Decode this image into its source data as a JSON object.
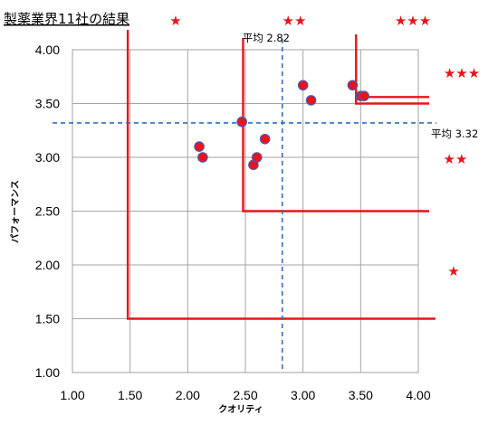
{
  "chart_data": {
    "type": "scatter",
    "title": "製薬業界11社の結果",
    "xlabel": "クオリティ",
    "ylabel": "パフォーマンス",
    "xlim": [
      1.0,
      4.0
    ],
    "ylim": [
      1.0,
      4.0
    ],
    "x_ticks": [
      "1.00",
      "1.50",
      "2.00",
      "2.50",
      "3.00",
      "3.50",
      "4.00"
    ],
    "y_ticks": [
      "1.00",
      "1.50",
      "2.00",
      "2.50",
      "3.00",
      "3.50",
      "4.00"
    ],
    "grid": true,
    "points": [
      {
        "x": 2.1,
        "y": 3.1
      },
      {
        "x": 2.13,
        "y": 3.0
      },
      {
        "x": 2.47,
        "y": 3.33
      },
      {
        "x": 2.57,
        "y": 2.93
      },
      {
        "x": 2.6,
        "y": 3.0
      },
      {
        "x": 2.67,
        "y": 3.17
      },
      {
        "x": 3.0,
        "y": 3.67
      },
      {
        "x": 3.07,
        "y": 3.53
      },
      {
        "x": 3.43,
        "y": 3.67
      },
      {
        "x": 3.5,
        "y": 3.57
      },
      {
        "x": 3.53,
        "y": 3.57
      }
    ],
    "point_color": "#e8141a",
    "point_edge_color": "#4a5ab0",
    "averages": {
      "x": {
        "value": 2.82,
        "label": "平均 2.82"
      },
      "y": {
        "value": 3.32,
        "label": "平均 3.32"
      }
    },
    "average_line_color": "#2f6fbf",
    "tier_boundaries": [
      {
        "corner_x": 1.48,
        "corner_y": 1.5
      },
      {
        "corner_x": 2.48,
        "corner_y": 2.5
      },
      {
        "corner_x": 3.46,
        "corner_y": 3.5
      }
    ],
    "boundary_color": "#e8141a",
    "tier_markers": [
      {
        "label": "★",
        "slot": "top-left"
      },
      {
        "label": "★★",
        "slot": "top-middle"
      },
      {
        "label": "★★★",
        "slot": "top-right"
      },
      {
        "label": "★★★",
        "slot": "right-upper"
      },
      {
        "label": "★★",
        "slot": "right-middle"
      },
      {
        "label": "★",
        "slot": "right-lower"
      }
    ]
  }
}
